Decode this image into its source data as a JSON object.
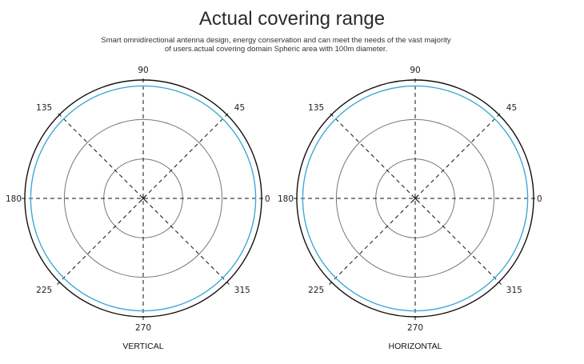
{
  "header": {
    "title": "Actual covering range",
    "subtitle_lines": [
      "Smart omnidirectional antenna design, energy conservation and can meet the needs of the vast majority",
      "of users.actual covering domain Spheric area with 100m diameter."
    ]
  },
  "colors": {
    "pattern_line": "#3fa9d6",
    "outer_circle": "#111111",
    "inner_circles": "#777777",
    "spokes": "#111111"
  },
  "charts": [
    {
      "caption": "VERTICAL",
      "angle_labels": [
        "0",
        "45",
        "90",
        "135",
        "180",
        "225",
        "270",
        "315"
      ],
      "pattern_level": 0.95
    },
    {
      "caption": "HORIZONTAL",
      "angle_labels": [
        "0",
        "45",
        "90",
        "135",
        "180",
        "225",
        "270",
        "315"
      ],
      "pattern_level": 0.95
    }
  ]
}
